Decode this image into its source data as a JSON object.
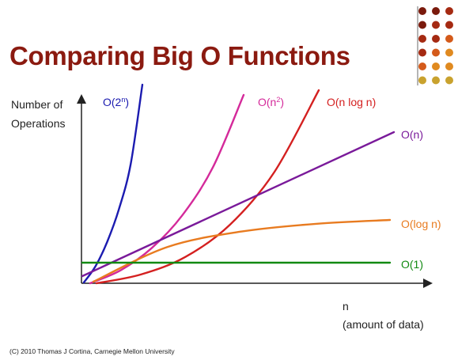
{
  "slide": {
    "title": "Comparing Big O Functions",
    "footer": "(C) 2010 Thomas J Cortina, Carnegie Mellon University"
  },
  "colors": {
    "title": "#8b1a10",
    "decor_dots": [
      "#7a1a0c",
      "#a52a12",
      "#d45a1a",
      "#e08a20",
      "#c9a22e"
    ]
  },
  "chart_data": {
    "type": "line",
    "title": "Comparing Big O Functions",
    "ylabel_lines": [
      "Number of",
      "Operations"
    ],
    "xlabel_lines": [
      "n",
      "(amount of data)"
    ],
    "grid": false,
    "axis_ticks": false,
    "series": [
      {
        "name": "O(2",
        "sup": "n",
        "suffix": ")",
        "color": "#1b1bb0",
        "points": [
          [
            0.0,
            0.0
          ],
          [
            0.1,
            0.08
          ],
          [
            0.2,
            0.2
          ],
          [
            0.3,
            0.36
          ],
          [
            0.4,
            0.58
          ],
          [
            0.5,
            0.97
          ]
        ]
      },
      {
        "name": "O(n",
        "sup": "2",
        "suffix": ")",
        "color": "#d42a9a",
        "points": [
          [
            0.0,
            0.0
          ],
          [
            0.2,
            0.06
          ],
          [
            0.4,
            0.16
          ],
          [
            0.6,
            0.31
          ],
          [
            0.8,
            0.53
          ],
          [
            1.0,
            0.86
          ]
        ]
      },
      {
        "name": "O(n log n)",
        "sup": "",
        "suffix": "",
        "color": "#d42020",
        "points": [
          [
            0.0,
            0.0
          ],
          [
            0.2,
            0.03
          ],
          [
            0.4,
            0.09
          ],
          [
            0.6,
            0.2
          ],
          [
            0.8,
            0.38
          ],
          [
            1.0,
            0.66
          ]
        ]
      },
      {
        "name": "O(n)",
        "sup": "",
        "suffix": "",
        "color": "#7a1a9a",
        "points": [
          [
            0.0,
            0.0
          ],
          [
            1.0,
            0.8
          ]
        ]
      },
      {
        "name": "O(log n)",
        "sup": "",
        "suffix": "",
        "color": "#e87b20",
        "points": [
          [
            0.0,
            0.0
          ],
          [
            0.25,
            0.18
          ],
          [
            0.5,
            0.26
          ],
          [
            0.75,
            0.3
          ],
          [
            1.0,
            0.32
          ]
        ]
      },
      {
        "name": "O(1)",
        "sup": "",
        "suffix": "",
        "color": "#128a12",
        "points": [
          [
            0.0,
            0.12
          ],
          [
            1.0,
            0.12
          ]
        ]
      }
    ]
  }
}
